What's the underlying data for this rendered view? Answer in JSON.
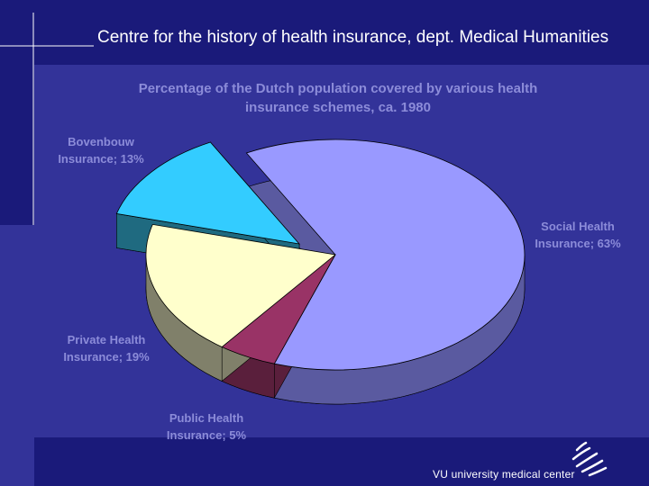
{
  "header": {
    "title": "Centre for the history of health insurance, dept. Medical Humanities"
  },
  "footer": {
    "logo_text": "VU university medical center"
  },
  "colors": {
    "background": "#333399",
    "corner_block": "#1a1a7a",
    "footer_band": "#1a1a7a",
    "label_text": "#8c8cd9"
  },
  "chart_data": {
    "type": "pie",
    "title_lines": [
      "Percentage of the Dutch population covered by various health",
      "insurance schemes, ca. 1980"
    ],
    "slices": [
      {
        "label_lines": [
          "Social Health",
          "Insurance; 63%"
        ],
        "value": 63,
        "color": "#9999ff",
        "side": "#5a5aa0"
      },
      {
        "label_lines": [
          "Public Health",
          "Insurance; 5%"
        ],
        "value": 5,
        "color": "#993366",
        "side": "#5a1f3c"
      },
      {
        "label_lines": [
          "Private Health",
          "Insurance; 19%"
        ],
        "value": 19,
        "color": "#ffffcc",
        "side": "#80806a"
      },
      {
        "label_lines": [
          "Bovenbouw",
          "Insurance; 13%"
        ],
        "value": 13,
        "color": "#33ccff",
        "side": "#1f6a80"
      }
    ]
  }
}
